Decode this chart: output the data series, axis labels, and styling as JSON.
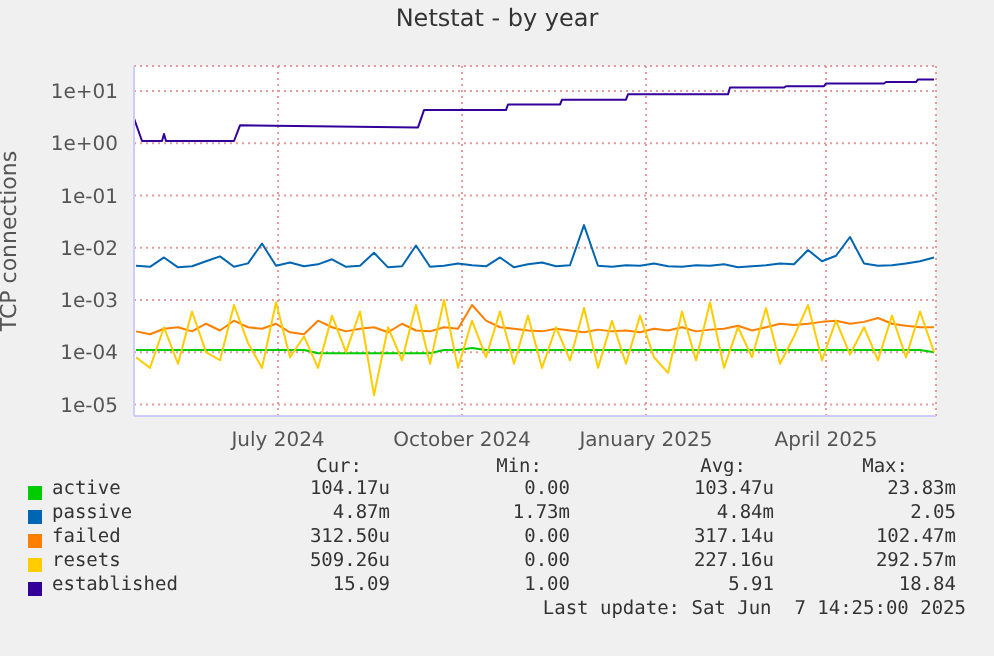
{
  "chart_data": {
    "type": "line",
    "title": "Netstat - by year",
    "ylabel": "TCP connections",
    "log": "y",
    "grid": true,
    "legend": "bottom",
    "marker": "none",
    "x": [
      "2024-05-06",
      "2024-05-13",
      "2024-05-20",
      "2024-05-27",
      "2024-06-03",
      "2024-06-10",
      "2024-06-17",
      "2024-06-24",
      "2024-07-01",
      "2024-07-08",
      "2024-07-15",
      "2024-07-22",
      "2024-07-29",
      "2024-08-05",
      "2024-08-12",
      "2024-08-19",
      "2024-08-26",
      "2024-09-02",
      "2024-09-09",
      "2024-09-16",
      "2024-09-23",
      "2024-09-30",
      "2024-10-07",
      "2024-10-14",
      "2024-10-21",
      "2024-10-28",
      "2024-11-04",
      "2024-11-11",
      "2024-11-18",
      "2024-11-25",
      "2024-12-02",
      "2024-12-09",
      "2024-12-16",
      "2024-12-23",
      "2024-12-30",
      "2025-01-06",
      "2025-01-13",
      "2025-01-20",
      "2025-01-27",
      "2025-02-03",
      "2025-02-10",
      "2025-02-17",
      "2025-02-24",
      "2025-03-03",
      "2025-03-10",
      "2025-03-17",
      "2025-03-24",
      "2025-03-31",
      "2025-04-07",
      "2025-04-14",
      "2025-04-21",
      "2025-04-28",
      "2025-05-05",
      "2025-05-12",
      "2025-05-19",
      "2025-05-26",
      "2025-06-02",
      "2025-06-09"
    ],
    "xlim": [
      "2024-05-05",
      "2025-06-10"
    ],
    "xticks": [
      {
        "value": "2024-07-16",
        "label": "July 2024"
      },
      {
        "value": "2024-10-16",
        "label": "October 2024"
      },
      {
        "value": "2025-01-16",
        "label": "January 2025"
      },
      {
        "value": "2025-04-16",
        "label": "April 2025"
      }
    ],
    "ylim": [
      6e-06,
      30
    ],
    "yticks": [
      {
        "value": 1e-05,
        "label": "1e-05"
      },
      {
        "value": 0.0001,
        "label": "1e-04"
      },
      {
        "value": 0.001,
        "label": "1e-03"
      },
      {
        "value": 0.01,
        "label": "1e-02"
      },
      {
        "value": 0.1,
        "label": "1e-01"
      },
      {
        "value": 1,
        "label": "1e+00"
      },
      {
        "value": 10,
        "label": "1e+01"
      }
    ],
    "series": [
      {
        "name": "active",
        "color": "#00cc00",
        "values": [
          0.00011,
          0.00011,
          0.00011,
          0.00011,
          0.00011,
          0.00011,
          0.00011,
          0.00011,
          0.00011,
          0.00011,
          0.00011,
          0.00011,
          0.00011,
          9.5e-05,
          9.5e-05,
          9.5e-05,
          9.5e-05,
          9.5e-05,
          9.5e-05,
          9.5e-05,
          9.5e-05,
          9.5e-05,
          0.00011,
          0.00011,
          0.00012,
          0.00011,
          0.00011,
          0.00011,
          0.00011,
          0.00011,
          0.00011,
          0.00011,
          0.00011,
          0.00011,
          0.00011,
          0.00011,
          0.00011,
          0.00011,
          0.00011,
          0.00011,
          0.00011,
          0.00011,
          0.00011,
          0.00011,
          0.00011,
          0.00011,
          0.00011,
          0.00011,
          0.00011,
          0.00011,
          0.00011,
          0.00011,
          0.00011,
          0.00011,
          0.00011,
          0.00011,
          0.00011,
          0.0001
        ]
      },
      {
        "name": "passive",
        "color": "#0066b3",
        "values": [
          0.0045,
          0.0043,
          0.0065,
          0.0042,
          0.0044,
          0.0055,
          0.0068,
          0.0043,
          0.005,
          0.012,
          0.0045,
          0.0052,
          0.0044,
          0.0048,
          0.006,
          0.0043,
          0.0045,
          0.008,
          0.0042,
          0.0044,
          0.011,
          0.0043,
          0.0045,
          0.005,
          0.0046,
          0.0044,
          0.0065,
          0.0042,
          0.0048,
          0.0052,
          0.0044,
          0.0046,
          0.027,
          0.0045,
          0.0043,
          0.0046,
          0.0045,
          0.005,
          0.0044,
          0.0043,
          0.0046,
          0.0045,
          0.0048,
          0.0042,
          0.0044,
          0.0046,
          0.005,
          0.0048,
          0.009,
          0.0055,
          0.007,
          0.016,
          0.005,
          0.0045,
          0.0046,
          0.005,
          0.0055,
          0.0065
        ]
      },
      {
        "name": "failed",
        "color": "#ff8000",
        "values": [
          0.00025,
          0.00022,
          0.00028,
          0.0003,
          0.00025,
          0.00035,
          0.00026,
          0.0004,
          0.0003,
          0.00028,
          0.00035,
          0.00024,
          0.00022,
          0.0004,
          0.0003,
          0.00025,
          0.00028,
          0.0003,
          0.00024,
          0.00035,
          0.00026,
          0.00025,
          0.0003,
          0.00028,
          0.0008,
          0.0004,
          0.0003,
          0.00028,
          0.00026,
          0.00025,
          0.00028,
          0.00026,
          0.00024,
          0.00027,
          0.00025,
          0.00026,
          0.00024,
          0.00028,
          0.00026,
          0.0003,
          0.00025,
          0.00027,
          0.00028,
          0.00032,
          0.00026,
          0.0003,
          0.00035,
          0.00033,
          0.00035,
          0.00038,
          0.0004,
          0.00035,
          0.00038,
          0.00045,
          0.00035,
          0.00032,
          0.0003,
          0.0003
        ]
      },
      {
        "name": "resets",
        "color": "#ffcc00",
        "values": [
          8e-05,
          5e-05,
          0.0003,
          6e-05,
          0.0006,
          0.0001,
          7e-05,
          0.0008,
          0.00015,
          5e-05,
          0.0009,
          8e-05,
          0.0002,
          5e-05,
          0.0005,
          0.0001,
          0.0006,
          1.5e-05,
          0.0003,
          7e-05,
          0.0008,
          6e-05,
          0.001,
          5e-05,
          0.0004,
          8e-05,
          0.0006,
          6e-05,
          0.0005,
          5e-05,
          0.0003,
          7e-05,
          0.0007,
          5e-05,
          0.0004,
          6e-05,
          0.0005,
          8e-05,
          4e-05,
          0.0006,
          7e-05,
          0.0009,
          5e-05,
          0.0003,
          8e-05,
          0.0007,
          6e-05,
          0.0002,
          0.0008,
          7e-05,
          0.0004,
          9e-05,
          0.0003,
          7e-05,
          0.0005,
          8e-05,
          0.0006,
          0.0001
        ]
      },
      {
        "name": "established",
        "color": "#330099",
        "x": [
          "2024-05-05",
          "2024-05-09",
          "2024-05-19",
          "2024-05-20",
          "2024-05-21",
          "2024-06-24",
          "2024-06-27",
          "2024-09-24",
          "2024-09-27",
          "2024-11-07",
          "2024-11-08",
          "2024-12-04",
          "2024-12-05",
          "2025-01-06",
          "2025-01-07",
          "2025-02-26",
          "2025-02-27",
          "2025-03-26",
          "2025-03-27",
          "2025-04-15",
          "2025-04-16",
          "2025-05-15",
          "2025-05-16",
          "2025-05-31",
          "2025-06-01",
          "2025-06-09"
        ],
        "values": [
          3,
          1.1,
          1.1,
          1.5,
          1.1,
          1.1,
          2.2,
          2,
          4.3,
          4.3,
          5.5,
          5.5,
          6.8,
          6.8,
          8.6,
          8.6,
          11.6,
          11.6,
          12.3,
          12.3,
          13.9,
          13.9,
          14.8,
          14.8,
          16.6,
          16.6
        ]
      }
    ],
    "annotations": [
      "Cur:",
      "Min:",
      "Avg:",
      "Max:",
      "104.17u",
      "0.00",
      "103.47u",
      "23.83m",
      "4.87m",
      "1.73m",
      "4.84m",
      "2.05",
      "312.50u",
      "0.00",
      "317.14u",
      "102.47m",
      "509.26u",
      "0.00",
      "227.16u",
      "292.57m",
      "15.09",
      "1.00",
      "5.91",
      "18.84",
      "Last update: Sat Jun  7 14:25:00 2025"
    ]
  }
}
